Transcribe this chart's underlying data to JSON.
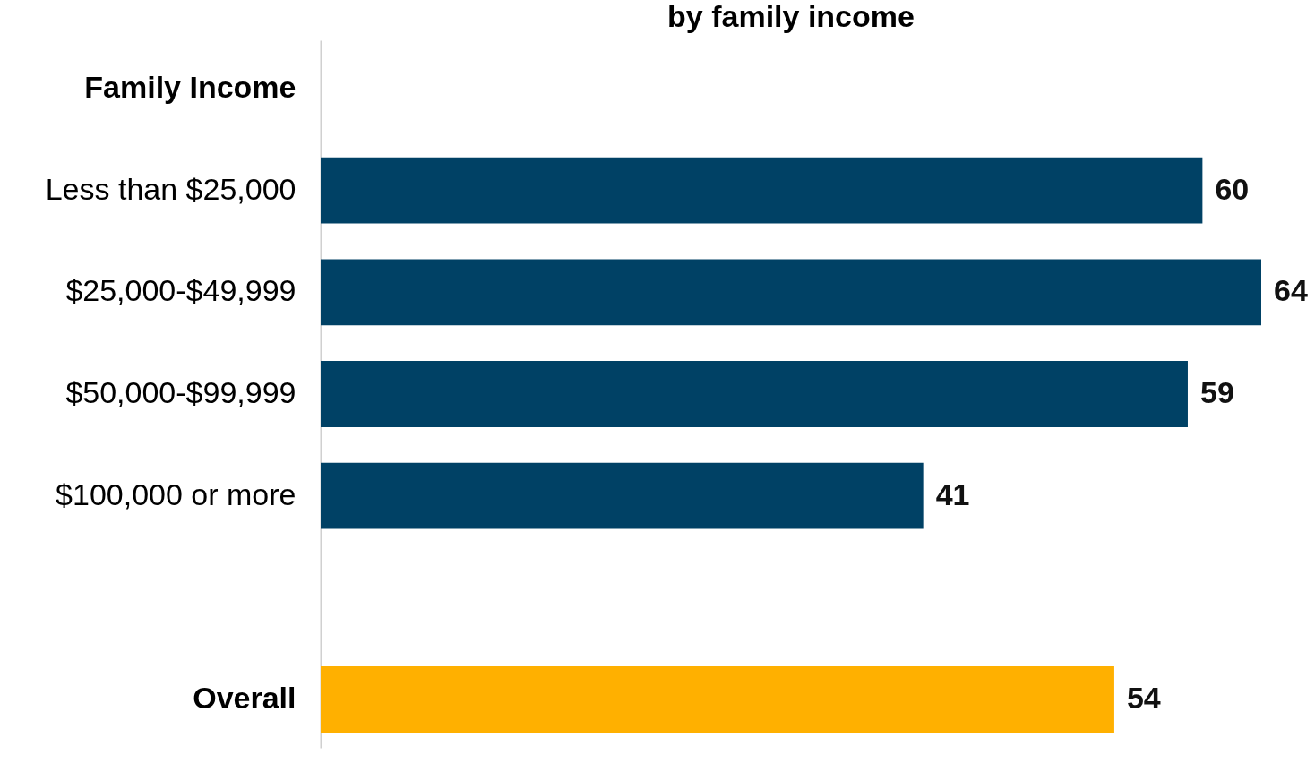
{
  "chart_data": {
    "type": "bar",
    "orientation": "horizontal",
    "title": "by family income",
    "categories": [
      "Family Income",
      "Less than $25,000",
      "$25,000-$49,999",
      "$50,000-$99,999",
      "$100,000 or more",
      null,
      "Overall"
    ],
    "values": [
      null,
      60,
      64,
      59,
      41,
      null,
      54
    ],
    "colors": [
      "#004165",
      "#004165",
      "#004165",
      "#004165",
      "#004165",
      "#004165",
      "#ffb000"
    ],
    "data_labels": true
  }
}
